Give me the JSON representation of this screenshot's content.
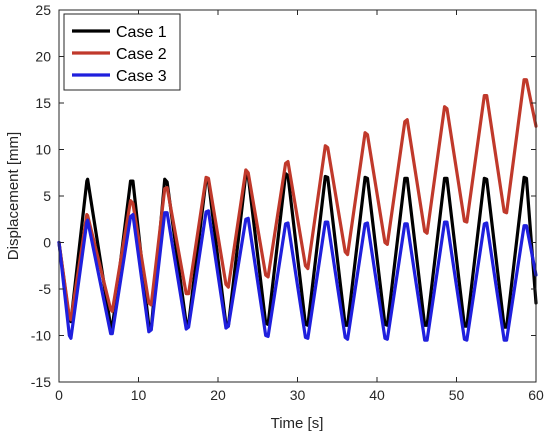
{
  "chart_data": {
    "type": "line",
    "title": "",
    "xlabel": "Time [s]",
    "ylabel": "Displacement [mm]",
    "xlim": [
      0,
      60
    ],
    "ylim": [
      -15,
      25
    ],
    "xticks": [
      0,
      10,
      20,
      30,
      40,
      50,
      60
    ],
    "yticks": [
      -15,
      -10,
      -5,
      0,
      5,
      10,
      15,
      20,
      25
    ],
    "grid": false,
    "legend_position": "top-left",
    "series": [
      {
        "name": "Case 1",
        "color": "#000000",
        "x": [
          0,
          1.3,
          1.5,
          3.5,
          3.6,
          6.5,
          6.7,
          9.0,
          9.3,
          11.3,
          11.6,
          13.3,
          13.6,
          16.0,
          16.3,
          18.5,
          18.8,
          21.0,
          21.3,
          23.5,
          23.8,
          26.0,
          26.3,
          28.5,
          28.8,
          31.0,
          31.3,
          33.5,
          33.8,
          36.0,
          36.3,
          38.5,
          38.8,
          41.0,
          41.3,
          43.5,
          43.8,
          46.0,
          46.3,
          48.5,
          48.8,
          51.0,
          51.3,
          53.5,
          53.8,
          56.0,
          56.3,
          58.5,
          58.8,
          60.0
        ],
        "y": [
          0,
          -8.3,
          -8.5,
          6.6,
          6.8,
          -9.0,
          -9.2,
          6.6,
          6.6,
          -9.0,
          -9.3,
          6.8,
          6.5,
          -8.7,
          -8.8,
          6.8,
          6.6,
          -8.8,
          -9.0,
          7.3,
          7.2,
          -8.7,
          -8.8,
          7.4,
          7.2,
          -8.8,
          -8.9,
          7.1,
          7.0,
          -8.9,
          -8.9,
          7.0,
          6.9,
          -8.8,
          -8.9,
          6.9,
          6.9,
          -8.9,
          -8.9,
          6.9,
          6.9,
          -9.0,
          -9.0,
          6.9,
          6.8,
          -9.1,
          -9.1,
          7.0,
          6.9,
          -6.5
        ]
      },
      {
        "name": "Case 2",
        "color": "#c0392b",
        "x": [
          0,
          1.3,
          1.5,
          3.5,
          3.6,
          6.5,
          6.7,
          9.0,
          9.3,
          11.3,
          11.6,
          13.3,
          13.6,
          16.0,
          16.3,
          18.5,
          18.8,
          21.0,
          21.3,
          23.5,
          23.8,
          26.0,
          26.3,
          28.5,
          28.8,
          31.0,
          31.3,
          33.5,
          33.8,
          36.0,
          36.3,
          38.5,
          38.8,
          41.0,
          41.3,
          43.5,
          43.8,
          46.0,
          46.3,
          48.5,
          48.8,
          51.0,
          51.3,
          53.5,
          53.8,
          56.0,
          56.3,
          58.5,
          58.8,
          60.0
        ],
        "y": [
          0,
          -8.0,
          -8.3,
          3.0,
          2.9,
          -7.2,
          -7.4,
          4.5,
          4.2,
          -6.5,
          -6.7,
          5.8,
          5.9,
          -5.5,
          -5.5,
          7.0,
          6.9,
          -4.5,
          -4.8,
          7.8,
          7.5,
          -3.5,
          -3.7,
          8.5,
          8.7,
          -2.5,
          -2.8,
          10.4,
          10.2,
          -1.0,
          -1.3,
          11.8,
          11.6,
          0.0,
          -0.2,
          13.0,
          13.2,
          1.2,
          1.0,
          14.6,
          14.4,
          2.3,
          2.2,
          15.8,
          15.8,
          3.3,
          3.2,
          17.5,
          17.5,
          12.5
        ]
      },
      {
        "name": "Case 3",
        "color": "#1f1fdd",
        "x": [
          0,
          1.3,
          1.5,
          3.5,
          3.6,
          6.5,
          6.7,
          9.0,
          9.3,
          11.3,
          11.6,
          13.3,
          13.6,
          16.0,
          16.3,
          18.5,
          18.8,
          21.0,
          21.3,
          23.5,
          23.8,
          26.0,
          26.3,
          28.5,
          28.8,
          31.0,
          31.3,
          33.5,
          33.8,
          36.0,
          36.3,
          38.5,
          38.8,
          41.0,
          41.3,
          43.5,
          43.8,
          46.0,
          46.3,
          48.5,
          48.8,
          51.0,
          51.3,
          53.5,
          53.8,
          56.0,
          56.3,
          58.5,
          58.8,
          60.0
        ],
        "y": [
          0,
          -10.0,
          -10.3,
          2.2,
          2.4,
          -9.8,
          -9.8,
          2.8,
          3.0,
          -9.6,
          -9.4,
          3.2,
          3.2,
          -9.3,
          -9.1,
          3.3,
          3.4,
          -9.2,
          -9.0,
          2.5,
          2.6,
          -10.0,
          -10.1,
          2.0,
          2.1,
          -10.2,
          -10.3,
          2.2,
          2.2,
          -10.2,
          -10.4,
          2.0,
          2.1,
          -10.3,
          -10.4,
          2.0,
          2.0,
          -10.5,
          -10.5,
          2.2,
          2.2,
          -10.4,
          -10.5,
          2.0,
          2.1,
          -10.5,
          -10.5,
          1.8,
          1.8,
          -3.5
        ]
      }
    ]
  }
}
